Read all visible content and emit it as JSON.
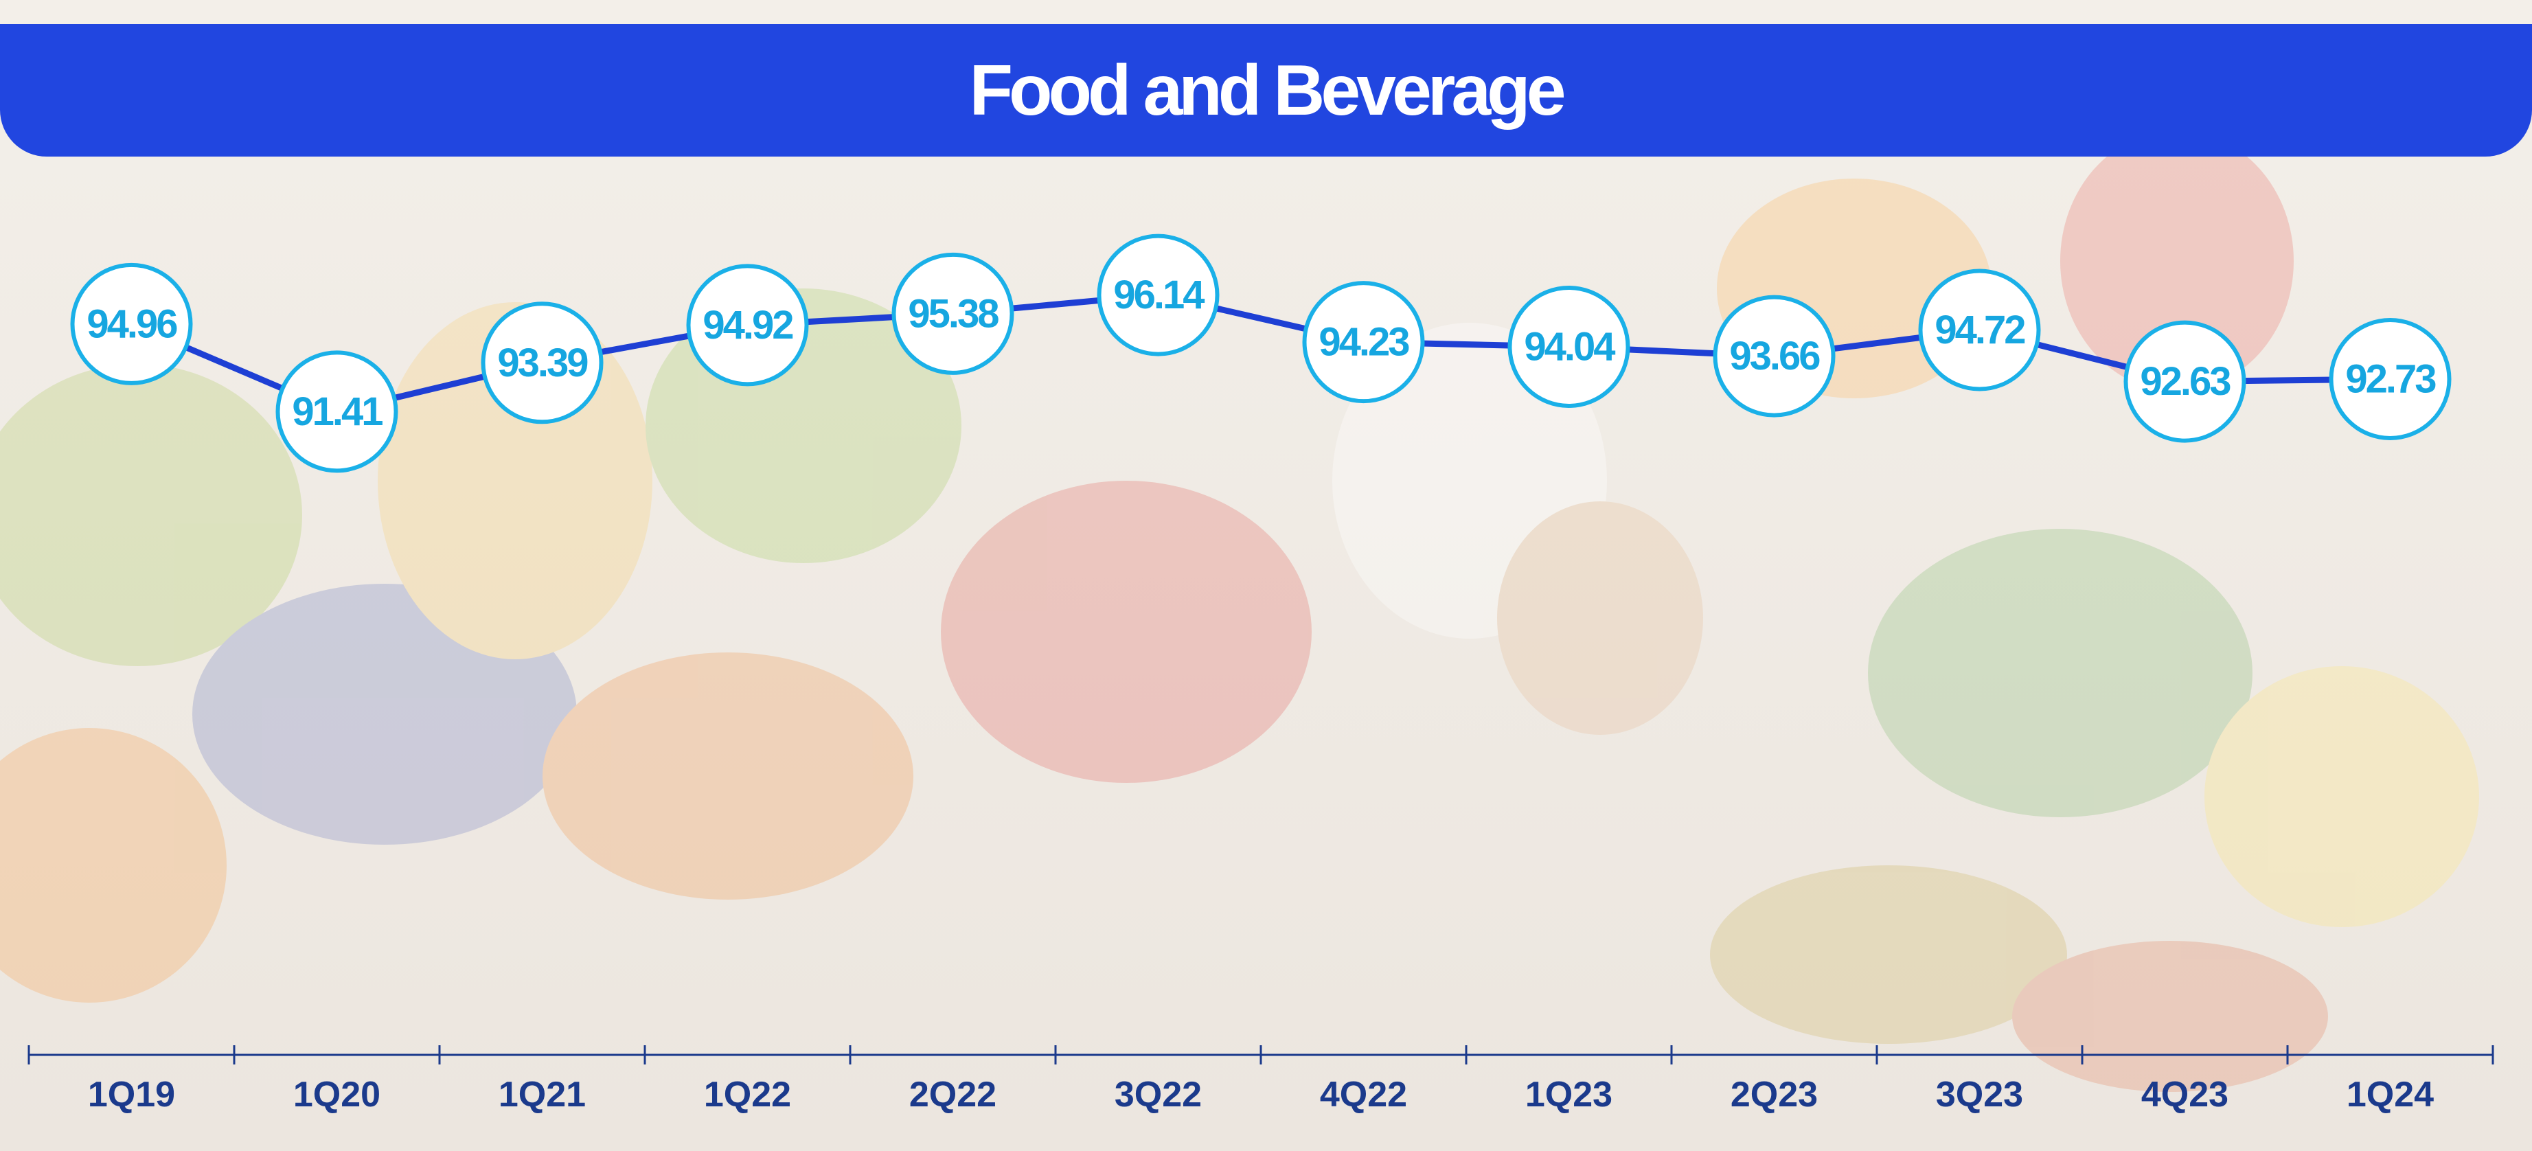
{
  "chart_data": {
    "type": "line",
    "title": "Food and Beverage",
    "categories": [
      "1Q19",
      "1Q20",
      "1Q21",
      "1Q22",
      "2Q22",
      "3Q22",
      "4Q22",
      "1Q23",
      "2Q23",
      "3Q23",
      "4Q23",
      "1Q24"
    ],
    "values": [
      94.96,
      91.41,
      93.39,
      94.92,
      95.38,
      96.14,
      94.23,
      94.04,
      93.66,
      94.72,
      92.63,
      92.73
    ],
    "color": "#1e3fd4",
    "ylim": [
      80,
      100
    ]
  }
}
